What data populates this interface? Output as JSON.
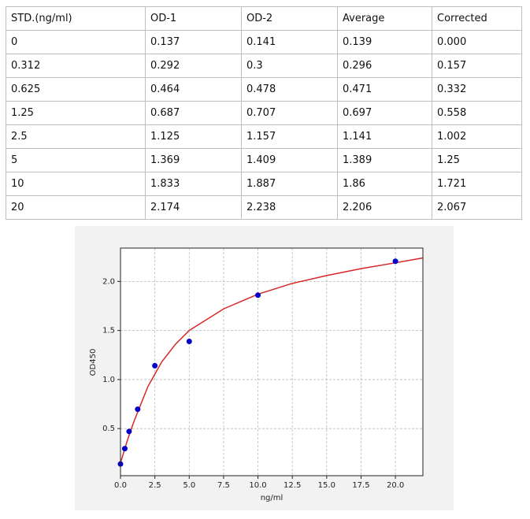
{
  "table": {
    "header": [
      "STD.(ng/ml)",
      "OD-1",
      "OD-2",
      "Average",
      "Corrected"
    ],
    "rows": [
      [
        "0",
        "0.137",
        "0.141",
        "0.139",
        "0.000"
      ],
      [
        "0.312",
        "0.292",
        "0.3",
        "0.296",
        "0.157"
      ],
      [
        "0.625",
        "0.464",
        "0.478",
        "0.471",
        "0.332"
      ],
      [
        "1.25",
        "0.687",
        "0.707",
        "0.697",
        "0.558"
      ],
      [
        "2.5",
        "1.125",
        "1.157",
        "1.141",
        "1.002"
      ],
      [
        "5",
        "1.369",
        "1.409",
        "1.389",
        "1.25"
      ],
      [
        "10",
        "1.833",
        "1.887",
        "1.86",
        "1.721"
      ],
      [
        "20",
        "2.174",
        "2.238",
        "2.206",
        "2.067"
      ]
    ]
  },
  "chart_data": {
    "type": "scatter",
    "x_label": "ng/ml",
    "y_label": "OD450",
    "x": [
      0,
      0.312,
      0.625,
      1.25,
      2.5,
      5,
      10,
      20
    ],
    "values": [
      0.139,
      0.296,
      0.471,
      0.697,
      1.141,
      1.389,
      1.86,
      2.206
    ],
    "color": "#0000cc",
    "curve": {
      "color": "#d62728",
      "x": [
        0,
        0.5,
        1,
        2,
        3,
        4,
        5,
        7.5,
        10,
        12.5,
        15,
        17.5,
        20,
        22
      ],
      "values": [
        0.15,
        0.38,
        0.58,
        0.93,
        1.18,
        1.36,
        1.5,
        1.72,
        1.87,
        1.98,
        2.06,
        2.13,
        2.19,
        2.24
      ]
    },
    "xlim": [
      0,
      22
    ],
    "ylim": [
      0.02,
      2.34
    ],
    "xticks": [
      {
        "value": 0,
        "label": "0.0"
      },
      2.5,
      {
        "value": 5,
        "label": "5.0"
      },
      7.5,
      {
        "value": 10,
        "label": "10.0"
      },
      12.5,
      {
        "value": 15,
        "label": "15.0"
      },
      17.5,
      {
        "value": 20,
        "label": "20.0"
      }
    ],
    "yticks": [
      0.5,
      {
        "value": 1,
        "label": "1.0"
      },
      1.5,
      {
        "value": 2,
        "label": "2.0"
      }
    ],
    "grid": true
  }
}
